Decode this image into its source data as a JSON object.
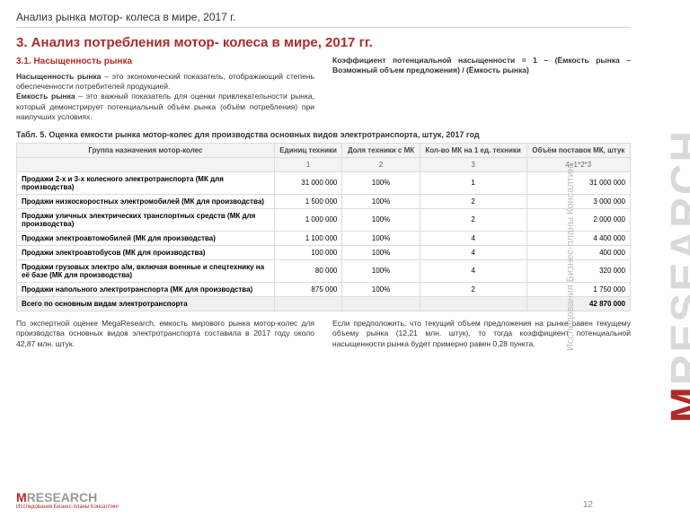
{
  "header": {
    "breadcrumb": "Анализ рынка мотор- колеса в мире, 2017 г."
  },
  "title": "3. Анализ потребления мотор- колеса в мире, 2017 гг.",
  "section_num": "3.1. Насыщенность рынка",
  "left_para": {
    "b1": "Насыщенность рынка",
    "t1": " – это экономический показатель, отображающий степень обеспеченности потребителей продукцией.",
    "b2": "Емкость рынка",
    "t2": " – это важный показатель для оценки привлекательности рынка, который демонстрирует потенциальный объём рынка (объём потребления) при наилучших условиях."
  },
  "right_para": "Коэффициент потенциальной насыщенности = 1 – (Ёмкость рынка – Возможный объем предложения) / (Ёмкость рынка)",
  "table": {
    "caption": "Табл. 5. Оценка емкости рынка мотор-колес для производства основных видов электротранспорта, штук, 2017 год",
    "head": [
      "Группа назначения мотор-колес",
      "Единиц техники",
      "Доля техники с МК",
      "Кол-во МК на 1 ед. техники",
      "Объём поставок МК, штук"
    ],
    "subhead": [
      "",
      "1",
      "2",
      "3",
      "4=1*2*3"
    ],
    "rows": [
      {
        "name": "Продажи 2-х и 3-х колесного электротранспорта (МК для производства)",
        "c": [
          "31 000 000",
          "100%",
          "1",
          "31 000 000"
        ]
      },
      {
        "name": "Продажи низкоскоростных электромобилей (МК для производства)",
        "c": [
          "1 500 000",
          "100%",
          "2",
          "3 000 000"
        ]
      },
      {
        "name": "Продажи уличных электрических транспортных средств (МК для производства)",
        "c": [
          "1 000 000",
          "100%",
          "2",
          "2 000 000"
        ]
      },
      {
        "name": "Продажи электроавтомобилей (МК для производства)",
        "c": [
          "1 100 000",
          "100%",
          "4",
          "4 400 000"
        ]
      },
      {
        "name": "Продажи электроавтобусов (МК для производства)",
        "c": [
          "100 000",
          "100%",
          "4",
          "400 000"
        ]
      },
      {
        "name": "Продажи грузовых электро а/м, включая военные и спецтехнику на её базе (МК для производства)",
        "c": [
          "80 000",
          "100%",
          "4",
          "320 000"
        ]
      },
      {
        "name": "Продажи напольного электротранспорта (МК для производства)",
        "c": [
          "875 000",
          "100%",
          "2",
          "1 750 000"
        ]
      }
    ],
    "total": {
      "name": "Всего по основным видам электротранспорта",
      "val": "42 870 000"
    }
  },
  "bottom_left": "По экспертной оценке MegaResearch, емкость мирового рынка мотор-колес для производства основных видов электротранспорта составила в 2017 году около 42,87 млн. штук.",
  "bottom_right": "Если предположить, что текущий объем предложения на рынке равен текущему объему рынка (12,21 млн. штук), то тогда коэффициент потенциальной насыщенности рынка будет примерно равен 0,28 пункта.",
  "brand": {
    "m": "M",
    "rest": "RESEARCH",
    "tag": "Исследования Бизнес-планы Консалтинг"
  },
  "page_number": "12"
}
